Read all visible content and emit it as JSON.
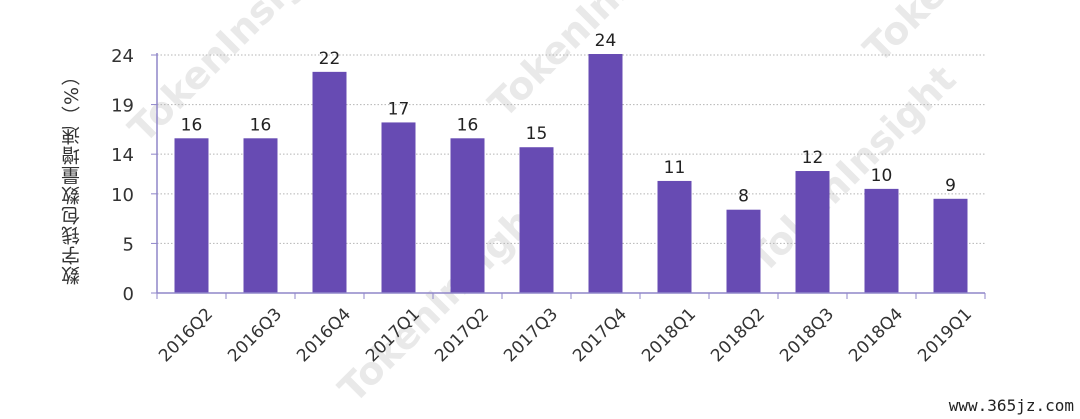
{
  "chart_data": {
    "type": "bar",
    "title": "",
    "ylabel": "数字钱包数量增速（%）",
    "xlabel": "",
    "categories": [
      "2016Q2",
      "2016Q3",
      "2016Q4",
      "2017Q1",
      "2017Q2",
      "2017Q3",
      "2017Q4",
      "2018Q1",
      "2018Q2",
      "2018Q3",
      "2018Q4",
      "2019Q1"
    ],
    "values": [
      15.6,
      15.6,
      22.3,
      17.2,
      15.6,
      14.7,
      24.1,
      11.3,
      8.4,
      12.3,
      10.5,
      9.5
    ],
    "data_labels": [
      "16",
      "16",
      "22",
      "17",
      "16",
      "15",
      "24",
      "11",
      "8",
      "12",
      "10",
      "9"
    ],
    "yticks": [
      0,
      5,
      10,
      14,
      19,
      24
    ],
    "ylim": [
      0,
      24
    ],
    "grid": "horizontal dotted",
    "bar_color": "#674BB3"
  },
  "watermark": "TokenInsight",
  "source_url": "www.365jz.com"
}
